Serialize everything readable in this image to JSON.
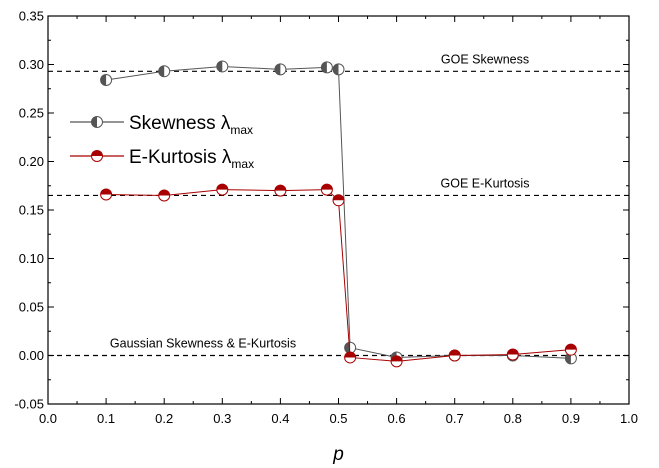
{
  "chart_data": {
    "type": "scatter",
    "title": "",
    "xlabel": "p",
    "ylabel": "",
    "xlim": [
      0.0,
      1.0
    ],
    "ylim": [
      -0.05,
      0.35
    ],
    "x_ticks": [
      "0.0",
      "0.1",
      "0.2",
      "0.3",
      "0.4",
      "0.5",
      "0.6",
      "0.7",
      "0.8",
      "0.9",
      "1.0"
    ],
    "y_ticks": [
      "-0.05",
      "0.00",
      "0.05",
      "0.10",
      "0.15",
      "0.20",
      "0.25",
      "0.30",
      "0.35"
    ],
    "grid": false,
    "legend_position": "upper-left",
    "series": [
      {
        "name": "Skewness",
        "name_sub": "max",
        "color": "#555555",
        "x": [
          0.1,
          0.2,
          0.3,
          0.4,
          0.48,
          0.5,
          0.52,
          0.6,
          0.7,
          0.8,
          0.9
        ],
        "y": [
          0.284,
          0.293,
          0.298,
          0.295,
          0.297,
          0.295,
          0.008,
          -0.002,
          0.0,
          0.0,
          -0.003
        ]
      },
      {
        "name": "E-Kurtosis",
        "name_sub": "max",
        "color": "#a80000",
        "x": [
          0.1,
          0.2,
          0.3,
          0.4,
          0.48,
          0.5,
          0.52,
          0.6,
          0.7,
          0.8,
          0.9
        ],
        "y": [
          0.166,
          0.165,
          0.171,
          0.17,
          0.171,
          0.16,
          -0.002,
          -0.006,
          0.0,
          0.001,
          0.006
        ]
      }
    ],
    "reference_lines": [
      {
        "y": 0.293,
        "label": "GOE Skewness"
      },
      {
        "y": 0.165,
        "label": "GOE E-Kurtosis"
      },
      {
        "y": 0.0,
        "label": "Gaussian Skewness & E-Kurtosis"
      }
    ]
  }
}
